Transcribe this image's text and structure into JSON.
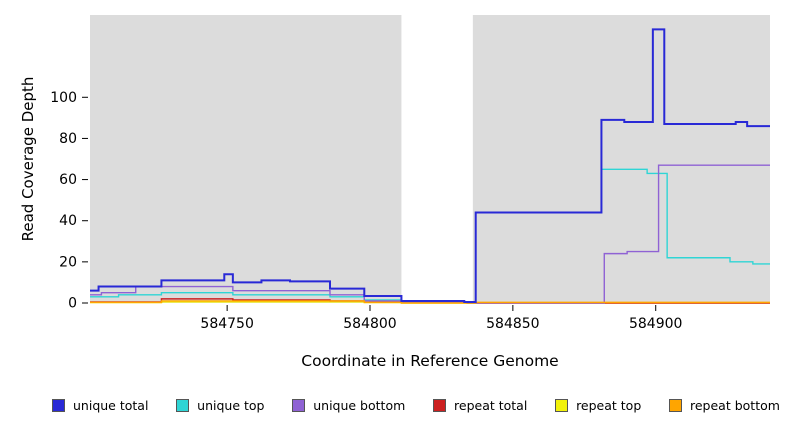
{
  "chart_data": {
    "type": "line",
    "step": true,
    "title": "",
    "xlabel": "Coordinate in Reference Genome",
    "ylabel": "Read Coverage Depth",
    "xlim": [
      584702,
      584940
    ],
    "ylim": [
      0,
      140
    ],
    "x_ticks": [
      584750,
      584800,
      584850,
      584900
    ],
    "y_ticks": [
      0,
      20,
      40,
      60,
      80,
      100
    ],
    "plot_background": "#dcdcdc",
    "no_data_region": [
      584811,
      584836
    ],
    "grid": false,
    "legend_position": "bottom",
    "series": [
      {
        "name": "unique total",
        "color": "#2929d6",
        "points": [
          [
            584702,
            6
          ],
          [
            584705,
            8
          ],
          [
            584727,
            11
          ],
          [
            584749,
            14
          ],
          [
            584752,
            10
          ],
          [
            584762,
            11
          ],
          [
            584772,
            10.5
          ],
          [
            584786,
            7
          ],
          [
            584798,
            3.4
          ],
          [
            584811,
            1
          ],
          [
            584833,
            0.5
          ],
          [
            584837,
            44
          ],
          [
            584881,
            89
          ],
          [
            584889,
            88
          ],
          [
            584899,
            133
          ],
          [
            584903,
            87
          ],
          [
            584928,
            88
          ],
          [
            584932,
            86
          ]
        ]
      },
      {
        "name": "unique top",
        "color": "#2fd5d5",
        "points": [
          [
            584702,
            3
          ],
          [
            584712,
            4
          ],
          [
            584727,
            5
          ],
          [
            584752,
            4
          ],
          [
            584786,
            3
          ],
          [
            584798,
            1.5
          ],
          [
            584811,
            0.5
          ],
          [
            584834,
            0
          ],
          [
            584837,
            44
          ],
          [
            584881,
            65
          ],
          [
            584897,
            63
          ],
          [
            584904,
            22
          ],
          [
            584926,
            20
          ],
          [
            584934,
            19
          ]
        ]
      },
      {
        "name": "unique bottom",
        "color": "#8f62d4",
        "points": [
          [
            584702,
            4
          ],
          [
            584706,
            5
          ],
          [
            584718,
            8
          ],
          [
            584752,
            6
          ],
          [
            584786,
            4
          ],
          [
            584798,
            1
          ],
          [
            584811,
            0.3
          ],
          [
            584834,
            0
          ],
          [
            584882,
            24
          ],
          [
            584890,
            25
          ],
          [
            584901,
            67
          ]
        ]
      },
      {
        "name": "repeat total",
        "color": "#cc2020",
        "points": [
          [
            584702,
            0.5
          ],
          [
            584727,
            2
          ],
          [
            584752,
            1.5
          ],
          [
            584786,
            1
          ],
          [
            584800,
            0.5
          ],
          [
            584811,
            0.2
          ],
          [
            584834,
            0
          ]
        ]
      },
      {
        "name": "repeat top",
        "color": "#f2f20a",
        "points": [
          [
            584702,
            0.2
          ],
          [
            584727,
            0.5
          ],
          [
            584798,
            0.2
          ],
          [
            584811,
            0
          ]
        ]
      },
      {
        "name": "repeat bottom",
        "color": "#ffa500",
        "points": [
          [
            584702,
            0.3
          ],
          [
            584727,
            1
          ],
          [
            584798,
            0.3
          ],
          [
            584811,
            0
          ],
          [
            584837,
            0.3
          ]
        ]
      }
    ]
  },
  "legend": {
    "items": [
      {
        "label": "unique total",
        "color": "#2929d6"
      },
      {
        "label": "unique top",
        "color": "#2fd5d5"
      },
      {
        "label": "unique bottom",
        "color": "#8f62d4"
      },
      {
        "label": "repeat total",
        "color": "#cc2020"
      },
      {
        "label": "repeat top",
        "color": "#f2f20a"
      },
      {
        "label": "repeat bottom",
        "color": "#ffa500"
      }
    ]
  }
}
